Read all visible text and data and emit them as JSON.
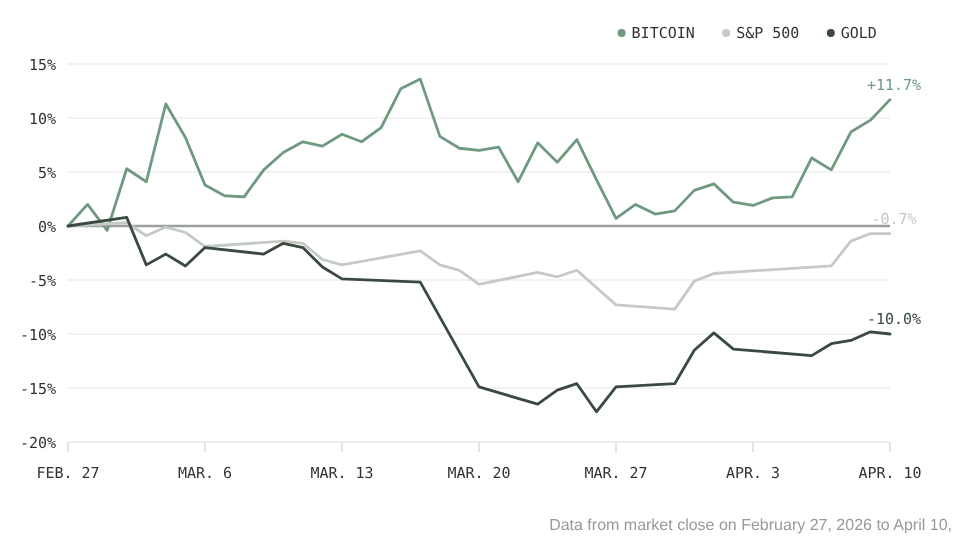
{
  "chart_data": {
    "type": "line",
    "series": [
      {
        "name": "BITCOIN",
        "color": "#6f9a80",
        "x": [
          "2026-02-27",
          "2026-02-28",
          "2026-03-01",
          "2026-03-02",
          "2026-03-03",
          "2026-03-04",
          "2026-03-05",
          "2026-03-06",
          "2026-03-07",
          "2026-03-08",
          "2026-03-09",
          "2026-03-10",
          "2026-03-11",
          "2026-03-12",
          "2026-03-13",
          "2026-03-14",
          "2026-03-15",
          "2026-03-16",
          "2026-03-17",
          "2026-03-18",
          "2026-03-19",
          "2026-03-20",
          "2026-03-21",
          "2026-03-22",
          "2026-03-23",
          "2026-03-24",
          "2026-03-25",
          "2026-03-26",
          "2026-03-27",
          "2026-03-28",
          "2026-03-29",
          "2026-03-30",
          "2026-03-31",
          "2026-04-01",
          "2026-04-02",
          "2026-04-03",
          "2026-04-04",
          "2026-04-05",
          "2026-04-06",
          "2026-04-07",
          "2026-04-08",
          "2026-04-09",
          "2026-04-10"
        ],
        "values": [
          0,
          2.0,
          -0.4,
          5.3,
          4.1,
          11.3,
          8.2,
          3.8,
          2.8,
          2.7,
          5.2,
          6.8,
          7.8,
          7.4,
          8.5,
          7.8,
          9.1,
          12.7,
          13.6,
          8.3,
          7.2,
          7.0,
          7.3,
          4.1,
          7.7,
          5.9,
          8.0,
          4.3,
          0.7,
          2.0,
          1.1,
          1.4,
          3.3,
          3.9,
          2.2,
          1.9,
          2.6,
          2.7,
          6.3,
          5.2,
          8.7,
          9.8,
          11.7
        ]
      },
      {
        "name": "S&P 500",
        "color": "#c4cbc4",
        "x": [
          "2026-02-27",
          "2026-03-02",
          "2026-03-03",
          "2026-03-04",
          "2026-03-05",
          "2026-03-06",
          "2026-03-10",
          "2026-03-11",
          "2026-03-12",
          "2026-03-13",
          "2026-03-17",
          "2026-03-18",
          "2026-03-19",
          "2026-03-20",
          "2026-03-23",
          "2026-03-24",
          "2026-03-25",
          "2026-03-27",
          "2026-03-30",
          "2026-03-31",
          "2026-04-01",
          "2026-04-06",
          "2026-04-07",
          "2026-04-08",
          "2026-04-09",
          "2026-04-10"
        ],
        "values": [
          0,
          0.3,
          -0.9,
          -0.1,
          -0.6,
          -1.9,
          -1.4,
          -1.6,
          -3.1,
          -3.6,
          -2.3,
          -3.6,
          -4.1,
          -5.4,
          -4.3,
          -4.7,
          -4.1,
          -7.3,
          -7.7,
          -5.1,
          -4.4,
          -3.8,
          -3.7,
          -1.4,
          -0.7,
          -0.7
        ]
      },
      {
        "name": "GOLD",
        "color": "#3a4a40",
        "x": [
          "2026-02-27",
          "2026-03-02",
          "2026-03-03",
          "2026-03-04",
          "2026-03-05",
          "2026-03-06",
          "2026-03-09",
          "2026-03-10",
          "2026-03-11",
          "2026-03-12",
          "2026-03-13",
          "2026-03-17",
          "2026-03-20",
          "2026-03-23",
          "2026-03-24",
          "2026-03-25",
          "2026-03-26",
          "2026-03-27",
          "2026-03-30",
          "2026-03-31",
          "2026-04-01",
          "2026-04-02",
          "2026-04-06",
          "2026-04-07",
          "2026-04-08",
          "2026-04-09",
          "2026-04-10"
        ],
        "values": [
          0,
          0.8,
          -3.6,
          -2.6,
          -3.7,
          -2.0,
          -2.6,
          -1.6,
          -2.0,
          -3.8,
          -4.9,
          -5.2,
          -14.9,
          -16.5,
          -15.2,
          -14.6,
          -17.2,
          -14.9,
          -14.6,
          -11.5,
          -9.9,
          -11.4,
          -12.0,
          -10.9,
          -10.6,
          -9.8,
          -10.0
        ]
      }
    ],
    "xlim": [
      "2026-02-27",
      "2026-04-10"
    ],
    "xticks": [
      {
        "value": "2026-02-27",
        "label": "FEB. 27"
      },
      {
        "value": "2026-03-06",
        "label": "MAR. 6"
      },
      {
        "value": "2026-03-13",
        "label": "MAR. 13"
      },
      {
        "value": "2026-03-20",
        "label": "MAR. 20"
      },
      {
        "value": "2026-03-27",
        "label": "MAR. 27"
      },
      {
        "value": "2026-04-03",
        "label": "APR. 3"
      },
      {
        "value": "2026-04-10",
        "label": "APR. 10"
      }
    ],
    "ylim": [
      -20,
      15
    ],
    "yticks": [
      {
        "value": -20,
        "label": "-20%"
      },
      {
        "value": -15,
        "label": "-15%"
      },
      {
        "value": -10,
        "label": "-10%"
      },
      {
        "value": -5,
        "label": "-5%"
      },
      {
        "value": 0,
        "label": "0%"
      },
      {
        "value": 5,
        "label": "5%"
      },
      {
        "value": 10,
        "label": "10%"
      },
      {
        "value": 15,
        "label": "15%"
      }
    ],
    "grid": "y",
    "legend": "top right",
    "marker": "none",
    "line_style": "solid",
    "annotations": [
      {
        "text": "+11.7%",
        "x": "2026-04-10",
        "y": 11.7
      },
      {
        "text": "-0.7%",
        "x": "2026-04-10",
        "y": -0.7
      },
      {
        "text": "-10.0%",
        "x": "2026-04-10",
        "y": -10.0
      },
      "Data from market close on February 27, 2026 to April 10,"
    ]
  }
}
